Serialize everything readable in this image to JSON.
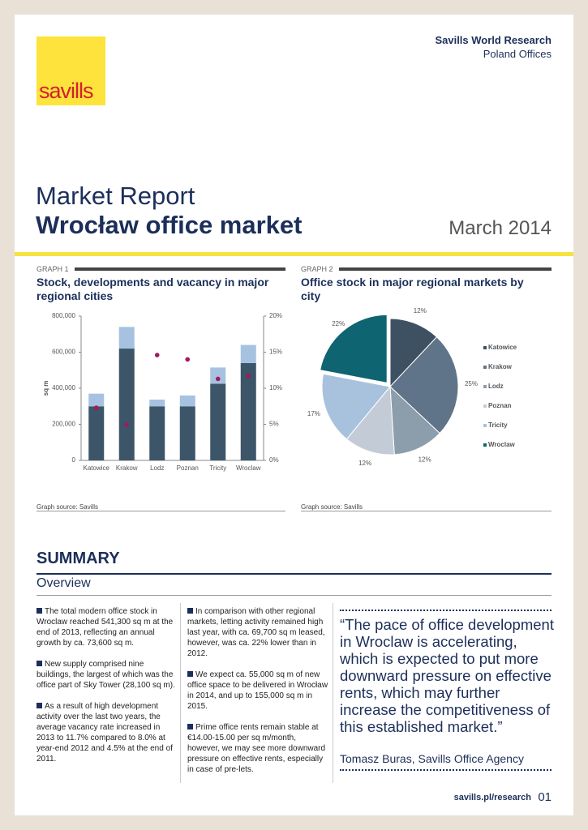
{
  "header": {
    "logo": "savills",
    "org": "Savills World Research",
    "division": "Poland Offices"
  },
  "title": {
    "kicker": "Market Report",
    "headline": "Wrocław office market",
    "date": "March 2014"
  },
  "chart_data": [
    {
      "type": "bar",
      "stacked": true,
      "label": "GRAPH 1",
      "title": "Stock, developments and vacancy in major regional cities",
      "source": "Graph source: Savills",
      "y_label": "sq m",
      "categories": [
        "Katowice",
        "Krakow",
        "Lodz",
        "Poznan",
        "Tricity",
        "Wroclaw"
      ],
      "series": [
        {
          "color": "#3d5568",
          "values": [
            300000,
            620000,
            300000,
            300000,
            425000,
            540000
          ]
        },
        {
          "color": "#a6c2e0",
          "values": [
            70000,
            120000,
            37000,
            60000,
            90000,
            100000
          ]
        },
        {
          "type": "scatter",
          "axis": "y2",
          "color": "#a3195b",
          "values": [
            7.3,
            4.9,
            14.6,
            14.0,
            11.3,
            11.7
          ]
        }
      ],
      "ylim": [
        0,
        800000
      ],
      "yticks": [
        0,
        {
          "value": 200000,
          "label": "200,000"
        },
        {
          "value": 400000,
          "label": "400,000"
        },
        {
          "value": 600000,
          "label": "600,000"
        },
        {
          "value": 800000,
          "label": "800,000"
        }
      ],
      "y2lim": [
        0,
        20
      ],
      "y2ticks": [
        {
          "value": 0,
          "label": "0%"
        },
        {
          "value": 5,
          "label": "5%"
        },
        {
          "value": 10,
          "label": "10%"
        },
        {
          "value": 15,
          "label": "15%"
        },
        {
          "value": 20,
          "label": "20%"
        }
      ]
    },
    {
      "type": "pie",
      "label": "GRAPH 2",
      "title": "Office stock in major regional markets by city",
      "source": "Graph source: Savills",
      "categories": [
        "Katowice",
        "Krakow",
        "Lodz",
        "Poznan",
        "Tricity",
        "Wroclaw"
      ],
      "values": [
        12,
        25,
        12,
        12,
        17,
        22
      ],
      "value_labels": [
        "12%",
        "25%",
        "12%",
        "12%",
        "17%",
        "22%"
      ],
      "colors": [
        "#3d5163",
        "#5f7488",
        "#8c9dac",
        "#c3ccd6",
        "#a8c2de",
        "#0e6470"
      ],
      "explode": [
        0,
        0,
        0,
        0,
        0,
        1
      ],
      "legend": "right"
    }
  ],
  "summary": {
    "heading": "SUMMARY",
    "subheading": "Overview",
    "column_1": [
      "The total modern office stock in Wroclaw reached 541,300 sq m at the end of 2013, reflecting an annual growth by ca. 73,600 sq m.",
      "New supply comprised nine buildings, the largest of which was the office part of Sky Tower (28,100 sq m).",
      "As a result of high development activity over the last two years, the average vacancy rate increased in 2013 to 11.7% compared to 8.0% at year-end 2012 and 4.5% at the end of 2011."
    ],
    "column_2": [
      "In comparison with other regional markets, letting activity remained high last year, with ca. 69,700 sq m leased, however, was ca. 22% lower than in 2012.",
      "We expect ca. 55,000 sq m of new office space to be delivered in Wrocław in 2014, and up to 155,000 sq m in 2015.",
      "Prime office rents remain stable at €14.00-15.00 per sq m/month, however, we may see more downward pressure on effective rents, especially in case of pre-lets."
    ]
  },
  "quote": {
    "text": "“The pace of office development in Wroclaw is accelerating, which is expected to put more downward pressure on effective rents, which may further increase the competitiveness of this established market.”",
    "attribution": "Tomasz Buras, Savills Office Agency"
  },
  "footer": {
    "url": "savills.pl/research",
    "page": "01"
  }
}
